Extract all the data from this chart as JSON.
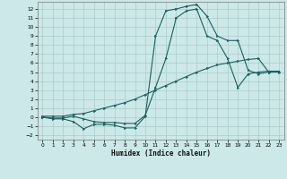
{
  "xlabel": "Humidex (Indice chaleur)",
  "xlim": [
    -0.5,
    23.5
  ],
  "ylim": [
    -2.5,
    12.8
  ],
  "xticks": [
    0,
    1,
    2,
    3,
    4,
    5,
    6,
    7,
    8,
    9,
    10,
    11,
    12,
    13,
    14,
    15,
    16,
    17,
    18,
    19,
    20,
    21,
    22,
    23
  ],
  "yticks": [
    -2,
    -1,
    0,
    1,
    2,
    3,
    4,
    5,
    6,
    7,
    8,
    9,
    10,
    11,
    12
  ],
  "background_color": "#cce8e8",
  "grid_color": "#aacccc",
  "line_color": "#1a6060",
  "line1_x": [
    0,
    1,
    2,
    3,
    4,
    5,
    6,
    7,
    8,
    9,
    10,
    11,
    12,
    13,
    14,
    15,
    16,
    17,
    18,
    19,
    20,
    21,
    22,
    23
  ],
  "line1_y": [
    0.0,
    -0.2,
    -0.2,
    -0.5,
    -1.3,
    -0.8,
    -0.8,
    -0.9,
    -1.2,
    -1.2,
    0.1,
    9.0,
    11.8,
    12.0,
    12.3,
    12.5,
    11.2,
    9.0,
    8.5,
    8.5,
    5.2,
    4.8,
    5.0,
    5.0
  ],
  "line2_x": [
    0,
    1,
    2,
    3,
    4,
    5,
    6,
    7,
    8,
    9,
    10,
    11,
    12,
    13,
    14,
    15,
    16,
    17,
    18,
    19,
    20,
    21,
    22,
    23
  ],
  "line2_y": [
    0.0,
    -0.1,
    -0.1,
    0.1,
    -0.2,
    -0.5,
    -0.6,
    -0.6,
    -0.7,
    -0.7,
    0.2,
    3.3,
    6.5,
    11.0,
    11.8,
    12.0,
    9.0,
    8.5,
    6.5,
    3.3,
    4.8,
    5.0,
    5.1,
    5.1
  ],
  "line3_x": [
    0,
    1,
    2,
    3,
    4,
    5,
    6,
    7,
    8,
    9,
    10,
    11,
    12,
    13,
    14,
    15,
    16,
    17,
    18,
    19,
    20,
    21,
    22,
    23
  ],
  "line3_y": [
    0.1,
    0.1,
    0.1,
    0.3,
    0.4,
    0.7,
    1.0,
    1.3,
    1.6,
    2.0,
    2.5,
    3.0,
    3.5,
    4.0,
    4.5,
    5.0,
    5.4,
    5.8,
    6.0,
    6.2,
    6.4,
    6.5,
    5.0,
    5.1
  ]
}
